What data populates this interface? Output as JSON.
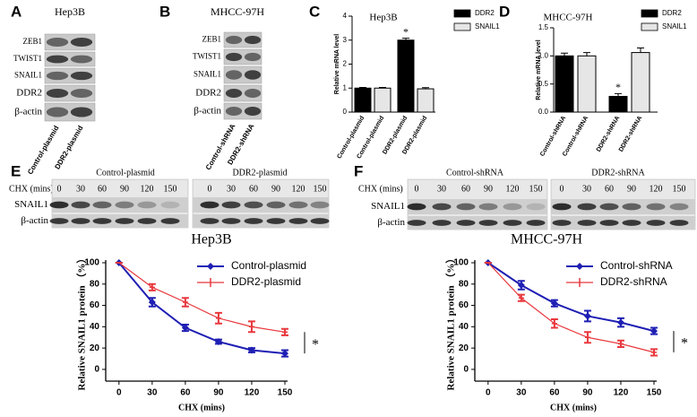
{
  "blots": [
    {
      "label": "A",
      "title": "Hep3B",
      "rows": [
        "ZEB1",
        "TWIST1",
        "SNAIL1",
        "DDR2",
        "β-actin"
      ],
      "lanes": [
        "Control-plasmid",
        "DDR2-plasmid"
      ]
    },
    {
      "label": "B",
      "title": "MHCC-97H",
      "rows": [
        "ZEB1",
        "TWIST1",
        "SNAIL1",
        "DDR2",
        "β-actin"
      ],
      "lanes": [
        "Control-shRNA",
        "DDR2-shRNA"
      ]
    },
    {
      "label": "E",
      "time_label": "CHX (mins)",
      "rows": [
        "SNAIL1",
        "β-actin"
      ],
      "groups": [
        {
          "name": "Control-plasmid",
          "times": [
            0,
            30,
            60,
            90,
            120,
            150
          ]
        },
        {
          "name": "DDR2-plasmid",
          "times": [
            0,
            30,
            60,
            90,
            120,
            150
          ]
        }
      ]
    },
    {
      "label": "F",
      "time_label": "CHX (mins)",
      "rows": [
        "SNAIL1",
        "β-actin"
      ],
      "groups": [
        {
          "name": "Control-shRNA",
          "times": [
            0,
            30,
            60,
            90,
            120,
            150
          ]
        },
        {
          "name": "DDR2-shRNA",
          "times": [
            0,
            30,
            60,
            90,
            120,
            150
          ]
        }
      ]
    }
  ],
  "chart_data": [
    {
      "type": "bar",
      "label": "C",
      "title": "Hep3B",
      "ylabel": "Relative mRNA level",
      "categories": [
        "Control-plasmid",
        "Control-plasmid",
        "DDR2-plasmid",
        "DDR2-plasmid"
      ],
      "series": [
        {
          "name": "DDR2",
          "color": "#000000",
          "values": [
            1.0,
            null,
            3.0,
            null
          ],
          "errors": [
            0.03,
            null,
            0.08,
            null
          ]
        },
        {
          "name": "SNAIL1",
          "color": "#e6e6e6",
          "values": [
            null,
            1.0,
            null,
            0.97
          ],
          "errors": [
            null,
            0.03,
            null,
            0.05
          ]
        }
      ],
      "annotation": "*",
      "ylim": [
        0,
        4
      ],
      "yticks": [
        0,
        1,
        2,
        3,
        4
      ]
    },
    {
      "type": "bar",
      "label": "D",
      "title": "MHCC-97H",
      "ylabel": "Relative mRNA level",
      "categories": [
        "Control-shRNA",
        "Control-shRNA",
        "DDR2-shRNA",
        "DDR2-shRNA"
      ],
      "series": [
        {
          "name": "DDR2",
          "color": "#000000",
          "values": [
            1.0,
            null,
            0.28,
            null
          ],
          "errors": [
            0.05,
            null,
            0.05,
            null
          ]
        },
        {
          "name": "SNAIL1",
          "color": "#e6e6e6",
          "values": [
            null,
            1.0,
            null,
            1.06
          ],
          "errors": [
            null,
            0.06,
            null,
            0.08
          ]
        }
      ],
      "annotation": "*",
      "ylim": [
        0,
        1.5
      ],
      "yticks": [
        {
          "value": 0,
          "label": "0.0"
        },
        0.5,
        {
          "value": 1,
          "label": "1.0"
        },
        1.5
      ]
    },
    {
      "type": "line",
      "title": "Hep3B",
      "xlabel": "CHX (mins)",
      "ylabel": "Relative SNAIL1 protein （%）",
      "x": [
        0,
        30,
        60,
        90,
        120,
        150
      ],
      "series": [
        {
          "name": "Control-plasmid",
          "color": "#1f1fb4",
          "values": [
            100,
            63,
            39,
            26,
            18,
            15
          ],
          "errors": [
            0,
            4,
            3,
            2,
            2,
            3
          ]
        },
        {
          "name": "DDR2-plasmid",
          "color": "#e8383d",
          "values": [
            100,
            77,
            63,
            48,
            40,
            35
          ],
          "errors": [
            0,
            3,
            4,
            5,
            5,
            3
          ]
        }
      ],
      "annotation": "*",
      "xlim": [
        -12,
        150
      ],
      "ylim": [
        -11,
        100
      ],
      "xticks": [
        0,
        30,
        60,
        90,
        120,
        150
      ],
      "yticks": [
        0,
        20,
        40,
        60,
        80,
        100
      ],
      "legend": "upper right"
    },
    {
      "type": "line",
      "title": "MHCC-97H",
      "xlabel": "CHX (mins)",
      "ylabel": "Relative SNAIL1 protein （%）",
      "x": [
        0,
        30,
        60,
        90,
        120,
        150
      ],
      "series": [
        {
          "name": "Control-shRNA",
          "color": "#1f1fb4",
          "values": [
            100,
            79,
            62,
            50,
            44,
            36
          ],
          "errors": [
            0,
            4,
            3,
            5,
            4,
            3
          ]
        },
        {
          "name": "DDR2-shRNA",
          "color": "#e8383d",
          "values": [
            100,
            67,
            43,
            30,
            24,
            16
          ],
          "errors": [
            0,
            3,
            4,
            5,
            3,
            3
          ]
        }
      ],
      "annotation": "*",
      "xlim": [
        -12,
        150
      ],
      "ylim": [
        -11,
        100
      ],
      "xticks": [
        0,
        30,
        60,
        90,
        120,
        150
      ],
      "yticks": [
        0,
        20,
        40,
        60,
        80,
        100
      ],
      "legend": "upper right"
    }
  ]
}
